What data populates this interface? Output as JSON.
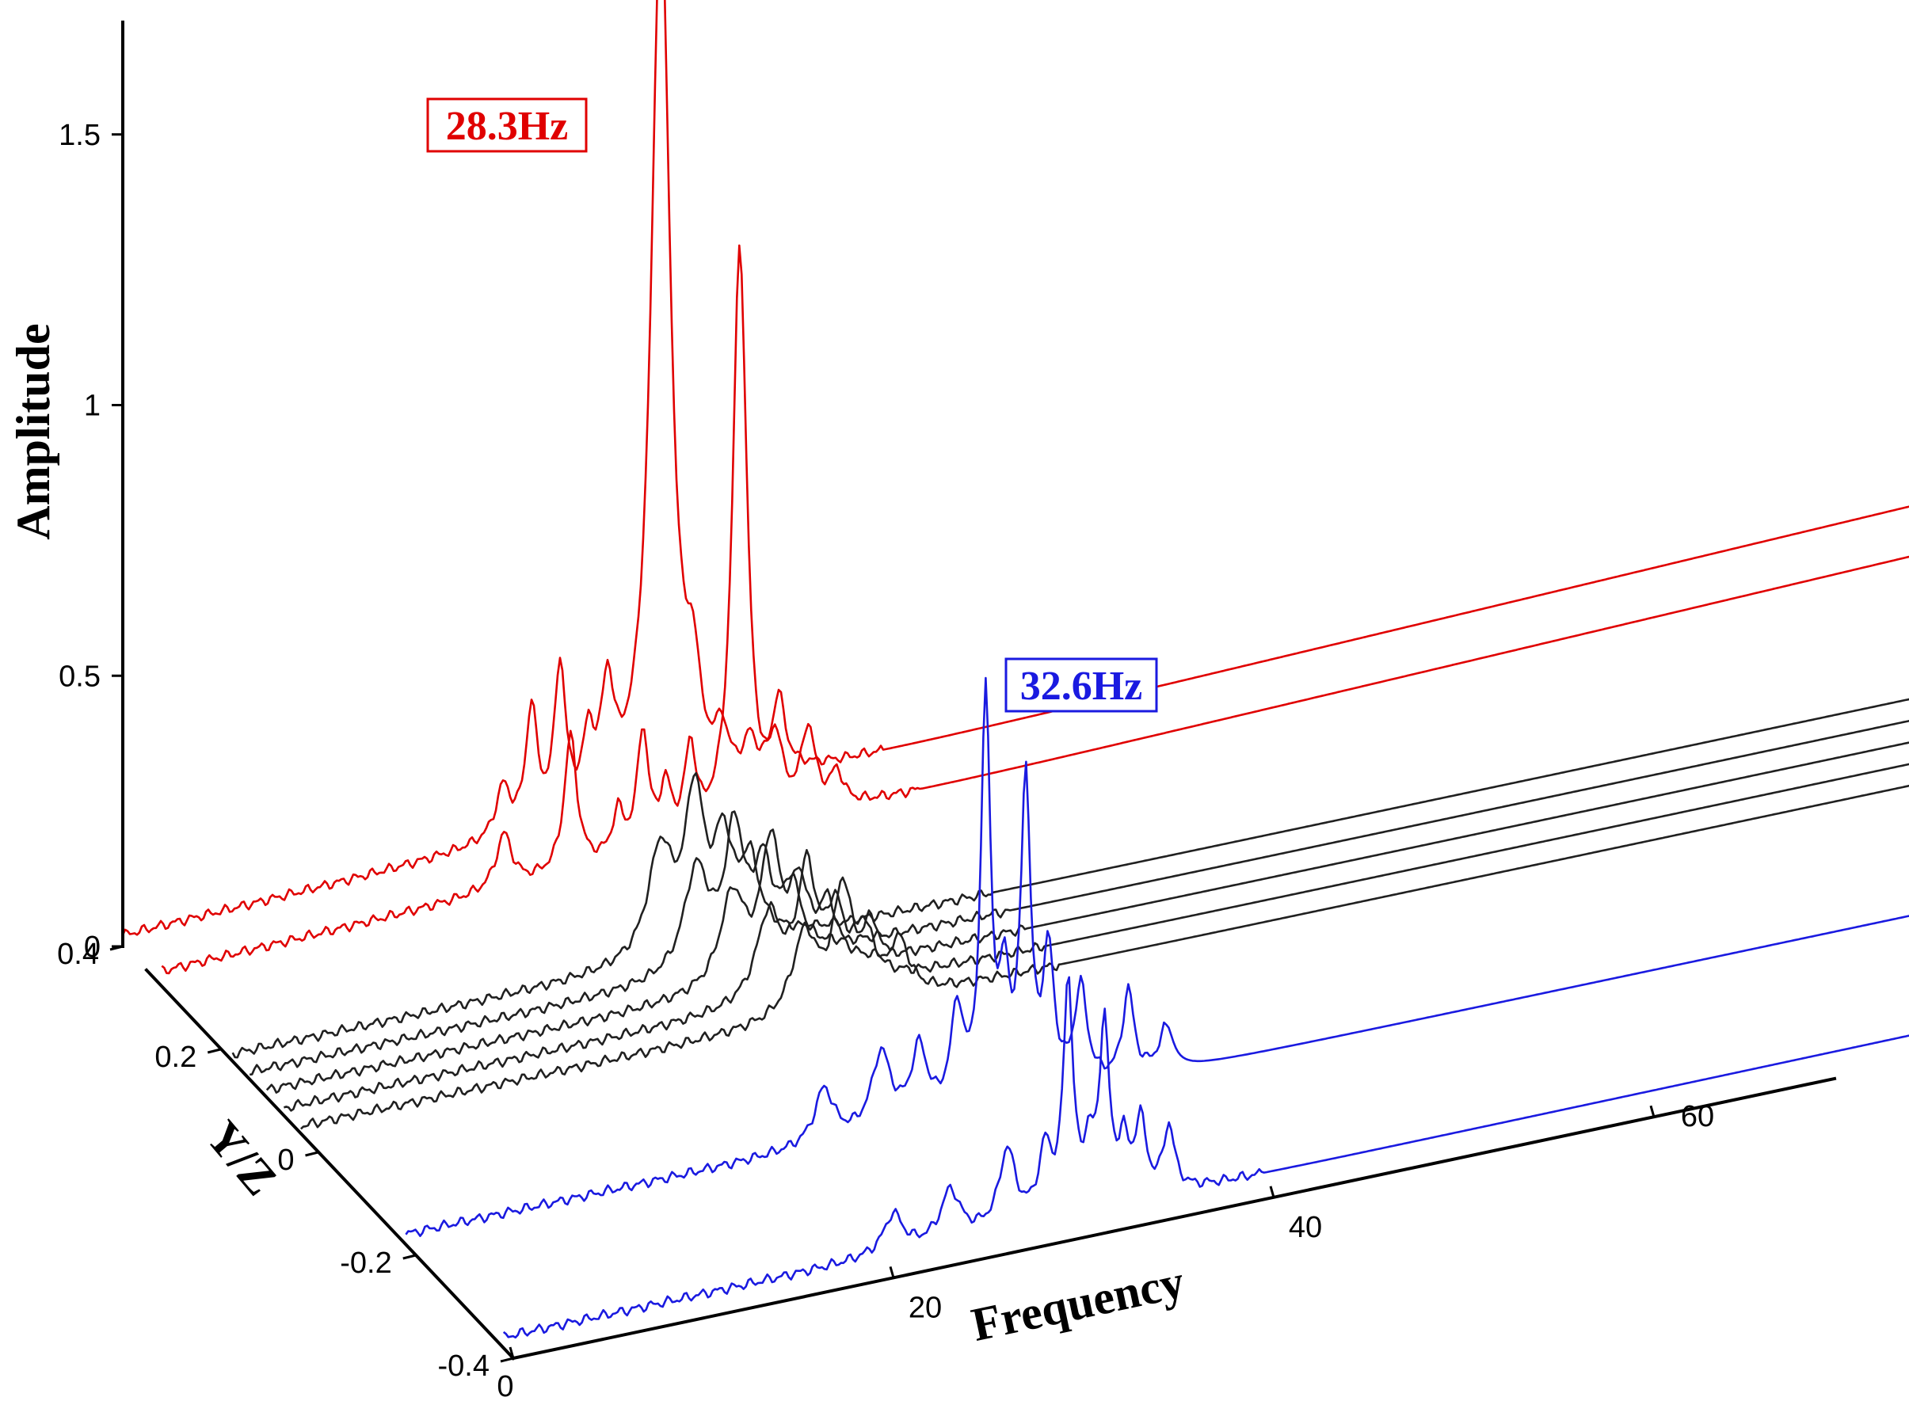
{
  "chart_data": {
    "type": "line",
    "projection": "3d-waterfall",
    "xlabel": "Frequency",
    "ylabel": "Y/Z",
    "zlabel": "Amplitude",
    "xlim": [
      0,
      100
    ],
    "ylim": [
      -0.4,
      0.4
    ],
    "zlim": [
      0,
      1.7
    ],
    "x_ticks": [
      0,
      20,
      40,
      60
    ],
    "y_ticks": [
      -0.4,
      -0.2,
      0,
      0.2,
      0.4
    ],
    "z_ticks": [
      0,
      0.5,
      1,
      1.5
    ],
    "x_tick_labels": [
      "0",
      "20",
      "40",
      "60"
    ],
    "y_tick_labels": [
      "-0.4",
      "-0.2",
      "0",
      "0.2",
      "0.4"
    ],
    "z_tick_labels": [
      "0",
      "0.5",
      "1",
      "1.5"
    ],
    "colors": {
      "red": "#e00000",
      "black": "#202020",
      "blue": "#1a1ae0"
    },
    "annotations": [
      {
        "text": "28.3Hz",
        "color": "#e00000",
        "frequency": 28.3
      },
      {
        "text": "32.6Hz",
        "color": "#1a1ae0",
        "frequency": 32.6
      }
    ],
    "series": [
      {
        "yz": 0.4,
        "color": "red",
        "base": 0.02,
        "end": 0.12,
        "peaks": [
          [
            20.0,
            0.09,
            0.45
          ],
          [
            21.5,
            0.22,
            0.35
          ],
          [
            23.0,
            0.28,
            0.35
          ],
          [
            24.5,
            0.12,
            0.35
          ],
          [
            25.5,
            0.2,
            0.4
          ],
          [
            28.3,
            1.65,
            0.6
          ],
          [
            30.0,
            0.16,
            0.4
          ],
          [
            31.5,
            0.08,
            0.35
          ],
          [
            33.0,
            0.06,
            0.35
          ],
          [
            34.5,
            0.14,
            0.4
          ]
        ]
      },
      {
        "yz": 0.32,
        "color": "red",
        "base": 0.03,
        "end": 0.12,
        "peaks": [
          [
            18.0,
            0.1,
            0.5
          ],
          [
            21.5,
            0.25,
            0.4
          ],
          [
            24.0,
            0.08,
            0.35
          ],
          [
            25.3,
            0.22,
            0.35
          ],
          [
            26.5,
            0.1,
            0.35
          ],
          [
            27.8,
            0.16,
            0.35
          ],
          [
            30.4,
            1.08,
            0.45
          ],
          [
            32.3,
            0.12,
            0.4
          ],
          [
            34.0,
            0.15,
            0.45
          ],
          [
            35.5,
            0.06,
            0.4
          ]
        ]
      },
      {
        "yz": 0.175,
        "color": "black",
        "base": 0.015,
        "end": 0.015,
        "peaks": [
          [
            22.5,
            0.2,
            0.8
          ],
          [
            24.3,
            0.28,
            0.6
          ],
          [
            25.8,
            0.18,
            0.6
          ],
          [
            27.2,
            0.14,
            0.6
          ]
        ]
      },
      {
        "yz": 0.14,
        "color": "black",
        "base": 0.015,
        "end": 0.015,
        "peaks": [
          [
            23.5,
            0.19,
            0.8
          ],
          [
            25.5,
            0.24,
            0.6
          ],
          [
            27.0,
            0.16,
            0.6
          ],
          [
            28.5,
            0.12,
            0.6
          ]
        ]
      },
      {
        "yz": 0.105,
        "color": "black",
        "base": 0.015,
        "end": 0.015,
        "peaks": [
          [
            24.5,
            0.17,
            0.8
          ],
          [
            26.5,
            0.24,
            0.6
          ],
          [
            28.0,
            0.15,
            0.6
          ],
          [
            29.5,
            0.11,
            0.6
          ]
        ]
      },
      {
        "yz": 0.07,
        "color": "black",
        "base": 0.015,
        "end": 0.015,
        "peaks": [
          [
            25.5,
            0.16,
            0.8
          ],
          [
            27.5,
            0.22,
            0.6
          ],
          [
            29.0,
            0.13,
            0.6
          ],
          [
            30.5,
            0.1,
            0.6
          ]
        ]
      },
      {
        "yz": 0.035,
        "color": "black",
        "base": 0.015,
        "end": 0.015,
        "peaks": [
          [
            26.5,
            0.15,
            0.8
          ],
          [
            28.5,
            0.21,
            0.6
          ],
          [
            30.0,
            0.12,
            0.6
          ],
          [
            31.5,
            0.09,
            0.6
          ]
        ]
      },
      {
        "yz": -0.18,
        "color": "blue",
        "base": 0.02,
        "end": 0.02,
        "peaks": [
          [
            22.0,
            0.1,
            0.6
          ],
          [
            25.0,
            0.14,
            0.6
          ],
          [
            27.0,
            0.13,
            0.5
          ],
          [
            29.0,
            0.18,
            0.4
          ],
          [
            30.5,
            0.75,
            0.3
          ],
          [
            31.5,
            0.2,
            0.3
          ],
          [
            32.6,
            0.58,
            0.3
          ],
          [
            33.8,
            0.25,
            0.35
          ],
          [
            35.5,
            0.18,
            0.4
          ],
          [
            38.0,
            0.16,
            0.35
          ],
          [
            40.0,
            0.08,
            0.45
          ]
        ]
      },
      {
        "yz": -0.38,
        "color": "blue",
        "base": 0.02,
        "end": 0.03,
        "peaks": [
          [
            20.5,
            0.07,
            0.6
          ],
          [
            23.5,
            0.09,
            0.6
          ],
          [
            26.5,
            0.14,
            0.5
          ],
          [
            28.5,
            0.12,
            0.4
          ],
          [
            29.7,
            0.42,
            0.3
          ],
          [
            30.8,
            0.1,
            0.3
          ],
          [
            31.6,
            0.33,
            0.3
          ],
          [
            32.6,
            0.1,
            0.3
          ],
          [
            33.5,
            0.14,
            0.35
          ],
          [
            35.0,
            0.12,
            0.35
          ]
        ]
      }
    ]
  }
}
